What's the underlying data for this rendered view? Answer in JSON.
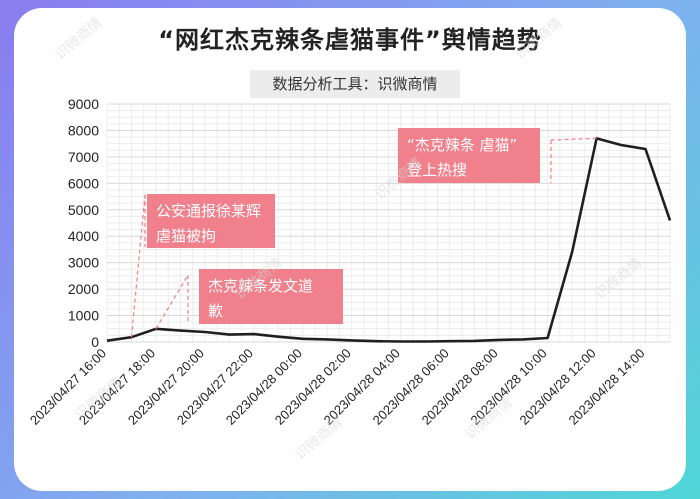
{
  "title": "“网红杰克辣条虐猫事件”舆情趋势",
  "subtitle": "数据分析工具：识微商情",
  "chart_data": {
    "type": "line",
    "x": [
      "2023/04/27 16:00",
      "2023/04/27 17:00",
      "2023/04/27 18:00",
      "2023/04/27 19:00",
      "2023/04/27 20:00",
      "2023/04/27 21:00",
      "2023/04/27 22:00",
      "2023/04/27 23:00",
      "2023/04/28 00:00",
      "2023/04/28 01:00",
      "2023/04/28 02:00",
      "2023/04/28 03:00",
      "2023/04/28 04:00",
      "2023/04/28 05:00",
      "2023/04/28 06:00",
      "2023/04/28 07:00",
      "2023/04/28 08:00",
      "2023/04/28 09:00",
      "2023/04/28 10:00",
      "2023/04/28 11:00",
      "2023/04/28 12:00",
      "2023/04/28 13:00",
      "2023/04/28 14:00",
      "2023/04/28 15:00"
    ],
    "series": [
      {
        "values": [
          50,
          180,
          500,
          430,
          380,
          280,
          300,
          200,
          120,
          100,
          60,
          30,
          20,
          20,
          30,
          40,
          80,
          100,
          150,
          3400,
          7700,
          7450,
          7300,
          4600
        ]
      }
    ],
    "xtick_labels": [
      "2023/04/27 16:00",
      "2023/04/27 18:00",
      "2023/04/27 20:00",
      "2023/04/27 22:00",
      "2023/04/28 00:00",
      "2023/04/28 02:00",
      "2023/04/28 04:00",
      "2023/04/28 06:00",
      "2023/04/28 08:00",
      "2023/04/28 10:00",
      "2023/04/28 12:00",
      "2023/04/28 14:00"
    ],
    "ylim": [
      0,
      9000
    ],
    "yticks": [
      0,
      1000,
      2000,
      3000,
      4000,
      5000,
      6000,
      7000,
      8000,
      9000
    ],
    "grid": true,
    "line_color": "#1f1f1f",
    "annotations": [
      {
        "lines": [
          "公安通报徐某辉",
          "虐猫被拘"
        ],
        "x": "2023/04/27 17:00"
      },
      {
        "lines": [
          "杰克辣条发文道",
          "歉"
        ],
        "x": "2023/04/27 18:00"
      },
      {
        "lines": [
          "“杰克辣条 虐猫”",
          "登上热搜"
        ],
        "x": "2023/04/28 12:00"
      }
    ],
    "annotation_color": "#f0808c"
  },
  "watermark": "识微商情"
}
